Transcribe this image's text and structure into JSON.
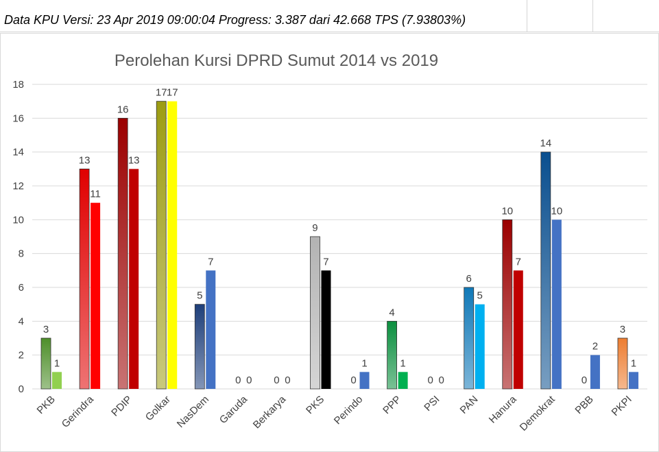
{
  "header": {
    "text": "Data KPU Versi: 23 Apr 2019 09:00:04 Progress: 3.387 dari 42.668 TPS (7.93803%)"
  },
  "chart_data": {
    "type": "bar",
    "title": "Perolehan Kursi DPRD Sumut 2014 vs 2019",
    "xlabel": "",
    "ylabel": "",
    "ylim": [
      0,
      18
    ],
    "yticks": [
      0,
      2,
      4,
      6,
      8,
      10,
      12,
      14,
      16,
      18
    ],
    "grid": true,
    "legend": "none",
    "categories": [
      "PKB",
      "Gerindra",
      "PDIP",
      "Golkar",
      "NasDem",
      "Garuda",
      "Berkarya",
      "PKS",
      "Perindo",
      "PPP",
      "PSI",
      "PAN",
      "Hanura",
      "Demokrat",
      "PBB",
      "PKPI"
    ],
    "series": [
      {
        "values": [
          3,
          13,
          16,
          17,
          5,
          0,
          0,
          9,
          0,
          4,
          0,
          6,
          10,
          14,
          0,
          3
        ],
        "colors": [
          "#4e8f2a",
          "#e00000",
          "#9b0000",
          "#9c9c12",
          "#1e3f7a",
          "#4472c4",
          "#4472c4",
          "#b3b3b3",
          "#4472c4",
          "#0b8f3f",
          "#4472c4",
          "#1179b8",
          "#9b0000",
          "#0a4f8f",
          "#4472c4",
          "#ed7d31"
        ],
        "fill": "gradient"
      },
      {
        "values": [
          1,
          11,
          13,
          17,
          7,
          0,
          0,
          7,
          1,
          1,
          0,
          5,
          7,
          10,
          2,
          1
        ],
        "colors": [
          "#92d050",
          "#ff0000",
          "#c00000",
          "#ffff00",
          "#4472c4",
          "#4472c4",
          "#4472c4",
          "#000000",
          "#4472c4",
          "#00b050",
          "#4472c4",
          "#00b0f0",
          "#c00000",
          "#4472c4",
          "#4472c4",
          "#4472c4"
        ],
        "fill": "solid"
      }
    ]
  }
}
